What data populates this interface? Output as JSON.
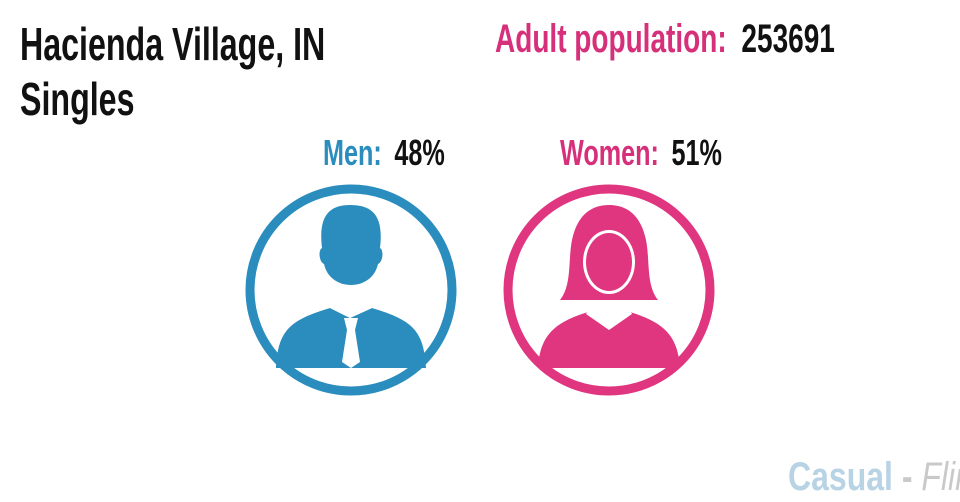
{
  "header": {
    "title": "Hacienda Village, IN",
    "subtitle": "Singles"
  },
  "population": {
    "label": "Adult population:",
    "value": 253691
  },
  "men": {
    "label": "Men:",
    "value": "48%"
  },
  "women": {
    "label": "Women:",
    "value": "51%"
  },
  "logo": {
    "first": "Casual",
    "separator": "-",
    "second": "Flirt"
  }
}
